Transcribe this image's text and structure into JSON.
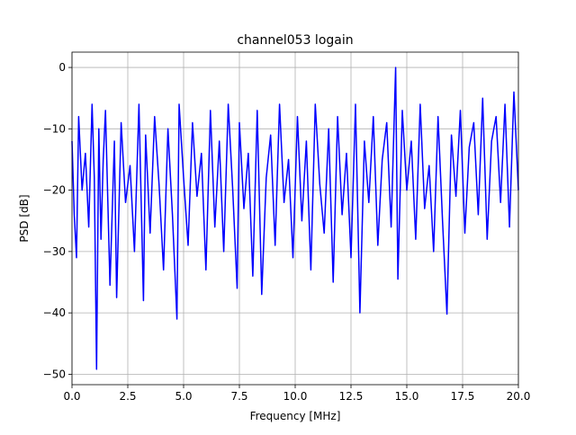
{
  "chart_data": {
    "type": "line",
    "title": "channel053 logain",
    "xlabel": "Frequency [MHz]",
    "ylabel": "PSD [dB]",
    "xlim": [
      0,
      20
    ],
    "ylim": [
      -51.7,
      2.5
    ],
    "xticks": [
      0,
      2.5,
      5,
      7.5,
      10,
      12.5,
      15,
      17.5,
      20
    ],
    "xtick_labels": [
      "0.0",
      "2.5",
      "5.0",
      "7.5",
      "10.0",
      "12.5",
      "15.0",
      "17.5",
      "20.0"
    ],
    "yticks": [
      0,
      -10,
      -20,
      -30,
      -40,
      -50
    ],
    "ytick_labels": [
      "0",
      "−10",
      "−20",
      "−30",
      "−40",
      "−50"
    ],
    "grid": true,
    "series": [
      {
        "color": "#0000ff",
        "x": [
          0.0,
          0.1,
          0.2,
          0.3,
          0.45,
          0.6,
          0.75,
          0.9,
          1.0,
          1.1,
          1.2,
          1.3,
          1.4,
          1.5,
          1.7,
          1.9,
          2.0,
          2.2,
          2.4,
          2.6,
          2.8,
          3.0,
          3.2,
          3.3,
          3.5,
          3.7,
          3.9,
          4.1,
          4.3,
          4.5,
          4.7,
          4.8,
          5.0,
          5.2,
          5.4,
          5.6,
          5.8,
          6.0,
          6.2,
          6.4,
          6.6,
          6.8,
          7.0,
          7.2,
          7.4,
          7.5,
          7.7,
          7.9,
          8.1,
          8.3,
          8.5,
          8.7,
          8.9,
          9.1,
          9.3,
          9.5,
          9.7,
          9.9,
          10.1,
          10.3,
          10.5,
          10.7,
          10.9,
          11.1,
          11.3,
          11.5,
          11.7,
          11.9,
          12.1,
          12.3,
          12.5,
          12.7,
          12.9,
          13.1,
          13.3,
          13.5,
          13.7,
          13.9,
          14.1,
          14.3,
          14.5,
          14.6,
          14.8,
          15.0,
          15.2,
          15.4,
          15.6,
          15.8,
          16.0,
          16.2,
          16.4,
          16.6,
          16.8,
          17.0,
          17.2,
          17.4,
          17.6,
          17.8,
          18.0,
          18.2,
          18.4,
          18.6,
          18.8,
          19.0,
          19.2,
          19.4,
          19.6,
          19.8,
          20.0
        ],
        "y": [
          -12,
          -24,
          -31,
          -8,
          -20,
          -14,
          -26,
          -6,
          -18,
          -49.2,
          -10,
          -28,
          -15,
          -7,
          -35.5,
          -12,
          -37.5,
          -9,
          -22,
          -16,
          -30,
          -6,
          -38,
          -11,
          -27,
          -8,
          -19,
          -33,
          -10,
          -24,
          -41,
          -6,
          -18,
          -29,
          -9,
          -21,
          -14,
          -33,
          -7,
          -26,
          -12,
          -30,
          -6,
          -20,
          -36,
          -9,
          -23,
          -14,
          -34,
          -7,
          -37,
          -18,
          -11,
          -29,
          -6,
          -22,
          -15,
          -31,
          -8,
          -25,
          -12,
          -33,
          -6,
          -19,
          -27,
          -10,
          -35,
          -8,
          -24,
          -14,
          -31,
          -6,
          -40,
          -12,
          -22,
          -8,
          -29,
          -15,
          -9,
          -26,
          0,
          -34.5,
          -7,
          -20,
          -12,
          -28,
          -6,
          -23,
          -16,
          -30,
          -8,
          -25,
          -40.2,
          -11,
          -21,
          -7,
          -27,
          -13,
          -9,
          -24,
          -5,
          -28,
          -12,
          -8,
          -22,
          -6,
          -26,
          -4,
          -20
        ]
      }
    ]
  }
}
